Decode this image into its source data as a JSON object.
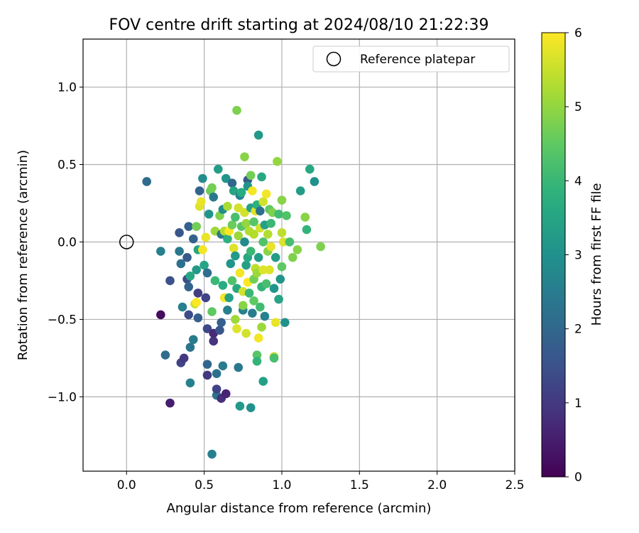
{
  "chart_data": {
    "type": "scatter",
    "title": "FOV centre drift starting at 2024/08/10 21:22:39",
    "xlabel": "Angular distance from reference (arcmin)",
    "ylabel": "Rotation from reference (arcmin)",
    "xlim": [
      -0.28,
      2.5
    ],
    "ylim": [
      -1.48,
      1.31
    ],
    "xticks": [
      0.0,
      0.5,
      1.0,
      1.5,
      2.0,
      2.5
    ],
    "xtick_labels": [
      "0.0",
      "0.5",
      "1.0",
      "1.5",
      "2.0",
      "2.5"
    ],
    "yticks": [
      -1.0,
      -0.5,
      0.0,
      0.5,
      1.0
    ],
    "ytick_labels": [
      "−1.0",
      "−0.5",
      "0.0",
      "0.5",
      "1.0"
    ],
    "grid": true,
    "colormap": "viridis",
    "colorbar": {
      "label": "Hours from first FF file",
      "range": [
        0,
        6
      ],
      "ticks": [
        0,
        1,
        2,
        3,
        4,
        5,
        6
      ],
      "tick_labels": [
        "0",
        "1",
        "2",
        "3",
        "4",
        "5",
        "6"
      ]
    },
    "legend": {
      "label": "Reference platepar",
      "placement": "top-right"
    },
    "reference_point": {
      "x": 0.0,
      "y": 0.0
    },
    "points": [
      [
        0.13,
        0.39,
        2.1
      ],
      [
        0.22,
        -0.06,
        2.6
      ],
      [
        0.22,
        -0.47,
        0.2
      ],
      [
        0.25,
        -0.73,
        2.1
      ],
      [
        0.28,
        -1.04,
        0.5
      ],
      [
        0.28,
        -0.25,
        1.5
      ],
      [
        0.34,
        0.06,
        1.6
      ],
      [
        0.34,
        -0.06,
        2.4
      ],
      [
        0.35,
        -0.14,
        2.2
      ],
      [
        0.35,
        -0.78,
        1.2
      ],
      [
        0.36,
        -0.42,
        2.6
      ],
      [
        0.37,
        -0.75,
        1.0
      ],
      [
        0.39,
        -0.24,
        1.4
      ],
      [
        0.39,
        -0.1,
        1.7
      ],
      [
        0.4,
        0.1,
        1.9
      ],
      [
        0.4,
        -0.29,
        1.9
      ],
      [
        0.4,
        -0.47,
        1.4
      ],
      [
        0.41,
        -0.22,
        3.6
      ],
      [
        0.41,
        -0.68,
        2.3
      ],
      [
        0.41,
        -0.91,
        2.6
      ],
      [
        0.43,
        -0.63,
        2.5
      ],
      [
        0.43,
        0.02,
        1.9
      ],
      [
        0.44,
        -0.4,
        5.5
      ],
      [
        0.45,
        0.1,
        4.7
      ],
      [
        0.45,
        -0.18,
        3.2
      ],
      [
        0.45,
        -0.39,
        6.0
      ],
      [
        0.46,
        -0.05,
        3.5
      ],
      [
        0.46,
        -0.33,
        1.1
      ],
      [
        0.46,
        -0.49,
        1.8
      ],
      [
        0.47,
        0.33,
        1.9
      ],
      [
        0.47,
        0.23,
        5.7
      ],
      [
        0.48,
        0.26,
        5.8
      ],
      [
        0.49,
        -0.05,
        5.9
      ],
      [
        0.49,
        0.41,
        2.9
      ],
      [
        0.5,
        -0.15,
        3.5
      ],
      [
        0.51,
        0.03,
        5.8
      ],
      [
        0.51,
        -0.36,
        1.2
      ],
      [
        0.52,
        -0.2,
        2.1
      ],
      [
        0.52,
        -0.56,
        1.3
      ],
      [
        0.52,
        -0.79,
        2.0
      ],
      [
        0.52,
        -0.86,
        1.0
      ],
      [
        0.53,
        0.18,
        3.1
      ],
      [
        0.54,
        0.33,
        4.6
      ],
      [
        0.55,
        -1.37,
        2.6
      ],
      [
        0.55,
        0.35,
        4.7
      ],
      [
        0.55,
        -0.45,
        4.5
      ],
      [
        0.56,
        -0.64,
        0.9
      ],
      [
        0.56,
        -0.59,
        0.7
      ],
      [
        0.56,
        0.29,
        2.4
      ],
      [
        0.57,
        0.07,
        5.1
      ],
      [
        0.57,
        -0.25,
        4.0
      ],
      [
        0.58,
        -0.99,
        2.3
      ],
      [
        0.58,
        -0.85,
        2.2
      ],
      [
        0.58,
        -0.95,
        1.2
      ],
      [
        0.59,
        0.47,
        3.3
      ],
      [
        0.6,
        0.17,
        4.8
      ],
      [
        0.6,
        -0.57,
        1.6
      ],
      [
        0.61,
        0.05,
        2.4
      ],
      [
        0.61,
        -0.52,
        1.8
      ],
      [
        0.61,
        -1.01,
        0.8
      ],
      [
        0.62,
        -0.28,
        3.7
      ],
      [
        0.62,
        -0.8,
        2.5
      ],
      [
        0.62,
        0.21,
        2.9
      ],
      [
        0.63,
        0.07,
        5.3
      ],
      [
        0.63,
        -0.36,
        5.9
      ],
      [
        0.64,
        -0.98,
        0.6
      ],
      [
        0.64,
        0.41,
        3.1
      ],
      [
        0.65,
        0.23,
        5.2
      ],
      [
        0.65,
        -0.44,
        2.6
      ],
      [
        0.65,
        0.02,
        3.8
      ],
      [
        0.66,
        -0.36,
        3.4
      ],
      [
        0.66,
        0.07,
        6.0
      ],
      [
        0.67,
        -0.14,
        3.1
      ],
      [
        0.68,
        0.38,
        2.0
      ],
      [
        0.68,
        0.11,
        4.6
      ],
      [
        0.68,
        -0.25,
        4.3
      ],
      [
        0.69,
        0.33,
        3.5
      ],
      [
        0.69,
        -0.04,
        5.7
      ],
      [
        0.7,
        -0.09,
        3.2
      ],
      [
        0.7,
        0.16,
        4.2
      ],
      [
        0.7,
        -0.5,
        5.1
      ],
      [
        0.71,
        -0.56,
        5.7
      ],
      [
        0.71,
        0.85,
        4.8
      ],
      [
        0.71,
        -0.3,
        3.6
      ],
      [
        0.72,
        0.04,
        5.1
      ],
      [
        0.72,
        -0.81,
        2.4
      ],
      [
        0.72,
        0.22,
        5.6
      ],
      [
        0.73,
        -1.06,
        3.2
      ],
      [
        0.73,
        0.3,
        2.7
      ],
      [
        0.73,
        -0.2,
        5.9
      ],
      [
        0.74,
        0.1,
        4.4
      ],
      [
        0.74,
        0.32,
        3.7
      ],
      [
        0.75,
        -0.44,
        2.6
      ],
      [
        0.75,
        -0.32,
        5.6
      ],
      [
        0.75,
        -0.41,
        4.9
      ],
      [
        0.76,
        0.0,
        2.9
      ],
      [
        0.76,
        0.19,
        5.6
      ],
      [
        0.76,
        0.55,
        4.9
      ],
      [
        0.77,
        -0.59,
        5.6
      ],
      [
        0.77,
        -0.15,
        3.4
      ],
      [
        0.77,
        0.12,
        5.0
      ],
      [
        0.78,
        -0.26,
        6.0
      ],
      [
        0.78,
        0.4,
        1.7
      ],
      [
        0.78,
        -0.1,
        3.6
      ],
      [
        0.78,
        0.36,
        3.1
      ],
      [
        0.79,
        0.07,
        5.3
      ],
      [
        0.79,
        -0.33,
        4.0
      ],
      [
        0.8,
        0.43,
        4.7
      ],
      [
        0.8,
        -1.07,
        3.0
      ],
      [
        0.8,
        -0.06,
        4.0
      ],
      [
        0.8,
        0.22,
        3.4
      ],
      [
        0.81,
        0.33,
        5.9
      ],
      [
        0.81,
        -0.46,
        2.5
      ],
      [
        0.82,
        -0.24,
        4.7
      ],
      [
        0.82,
        0.13,
        4.4
      ],
      [
        0.82,
        -0.38,
        4.5
      ],
      [
        0.82,
        0.05,
        5.3
      ],
      [
        0.83,
        -0.17,
        5.4
      ],
      [
        0.83,
        0.2,
        5.7
      ],
      [
        0.84,
        -0.73,
        4.4
      ],
      [
        0.84,
        -0.77,
        3.9
      ],
      [
        0.84,
        -0.2,
        5.1
      ],
      [
        0.84,
        0.24,
        3.8
      ],
      [
        0.85,
        0.69,
        3.2
      ],
      [
        0.85,
        -0.62,
        5.9
      ],
      [
        0.85,
        -0.1,
        3.3
      ],
      [
        0.86,
        0.09,
        5.6
      ],
      [
        0.86,
        -0.42,
        4.1
      ],
      [
        0.86,
        0.2,
        2.2
      ],
      [
        0.87,
        -0.29,
        3.9
      ],
      [
        0.87,
        0.42,
        3.6
      ],
      [
        0.87,
        -0.55,
        5.1
      ],
      [
        0.88,
        0.0,
        4.3
      ],
      [
        0.88,
        0.26,
        5.6
      ],
      [
        0.88,
        -0.18,
        5.7
      ],
      [
        0.88,
        -0.9,
        3.4
      ],
      [
        0.89,
        0.11,
        3.4
      ],
      [
        0.89,
        -0.48,
        2.6
      ],
      [
        0.9,
        0.31,
        5.9
      ],
      [
        0.9,
        -0.27,
        4.2
      ],
      [
        0.91,
        0.05,
        5.3
      ],
      [
        0.91,
        -0.06,
        4.9
      ],
      [
        0.92,
        -0.18,
        5.7
      ],
      [
        0.92,
        0.21,
        4.5
      ],
      [
        0.93,
        -0.03,
        5.8
      ],
      [
        0.93,
        0.12,
        4.0
      ],
      [
        0.94,
        0.19,
        4.8
      ],
      [
        0.95,
        -0.74,
        5.4
      ],
      [
        0.95,
        -0.75,
        4.2
      ],
      [
        0.95,
        -0.3,
        3.1
      ],
      [
        0.96,
        -0.52,
        5.8
      ],
      [
        0.96,
        -0.1,
        3.3
      ],
      [
        0.97,
        0.52,
        5.0
      ],
      [
        0.98,
        -0.37,
        3.5
      ],
      [
        0.98,
        0.18,
        4.1
      ],
      [
        0.99,
        -0.24,
        3.1
      ],
      [
        1.0,
        0.27,
        4.9
      ],
      [
        1.0,
        0.06,
        5.4
      ],
      [
        1.0,
        -0.16,
        4.5
      ],
      [
        1.01,
        0.0,
        5.7
      ],
      [
        1.02,
        -0.52,
        3.0
      ],
      [
        1.03,
        0.17,
        4.3
      ],
      [
        1.05,
        0.0,
        4.2
      ],
      [
        1.07,
        -0.1,
        4.8
      ],
      [
        1.1,
        -0.05,
        4.9
      ],
      [
        1.12,
        0.33,
        3.3
      ],
      [
        1.15,
        0.16,
        4.9
      ],
      [
        1.16,
        0.08,
        3.9
      ],
      [
        1.18,
        0.47,
        3.6
      ],
      [
        1.21,
        0.39,
        3.0
      ],
      [
        1.25,
        -0.03,
        4.8
      ]
    ]
  }
}
